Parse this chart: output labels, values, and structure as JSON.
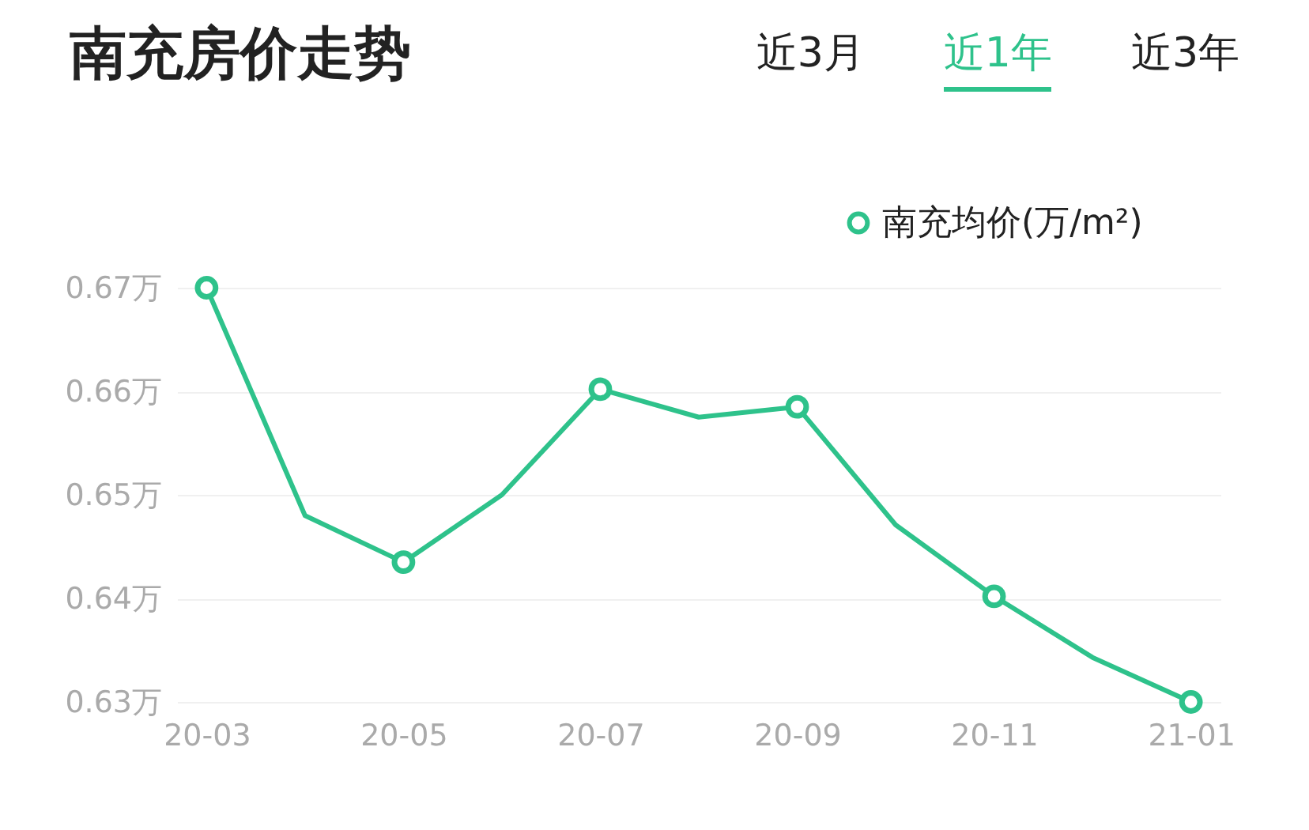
{
  "chart_data": {
    "type": "line",
    "title": "南充房价走势",
    "annotations": [
      "近3月",
      "近1年",
      "近3年"
    ],
    "categories": [
      "20-03",
      null,
      "20-05",
      null,
      "20-07",
      null,
      "20-09",
      null,
      "20-11",
      null,
      "21-01"
    ],
    "series": [
      {
        "name": "南充均价(万/m²)",
        "color": "#2ec28b",
        "values": [
          0.67,
          0.648,
          0.6435,
          0.65,
          0.6602,
          0.6575,
          0.6585,
          0.6471,
          0.6402,
          0.6343,
          0.63
        ]
      }
    ],
    "ylim": [
      0.63,
      0.67
    ],
    "yticks": [
      {
        "value": 0.63,
        "label": "0.63万"
      },
      {
        "value": 0.64,
        "label": "0.64万"
      },
      {
        "value": 0.65,
        "label": "0.65万"
      },
      {
        "value": 0.66,
        "label": "0.66万"
      },
      {
        "value": 0.67,
        "label": "0.67万"
      }
    ],
    "grid": "y",
    "legend": "top right",
    "marker": "circle",
    "line_style": "solid"
  }
}
